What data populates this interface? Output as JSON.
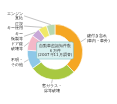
{
  "chart_data": {
    "type": "doughnut",
    "categories": [
      "鍵付き忘れ\n(車内・車外)",
      "窓ガラス・\n扉等破壊",
      "不明・\nその他",
      "ドア錠\n破壊等",
      "キー\n複製等",
      "正規\nキー使用",
      "エンジン\n直結"
    ],
    "values": [
      38,
      27,
      11,
      9,
      5,
      5,
      5
    ],
    "colors": [
      "#F5A623",
      "#A8C840",
      "#8EC8E8",
      "#F4B8C8",
      "#C8A8D8",
      "#F0E868",
      "#B8D8B0"
    ],
    "annotations": [
      "自動車盗認知件数",
      "６万件",
      "(2007年11月調査)"
    ]
  }
}
